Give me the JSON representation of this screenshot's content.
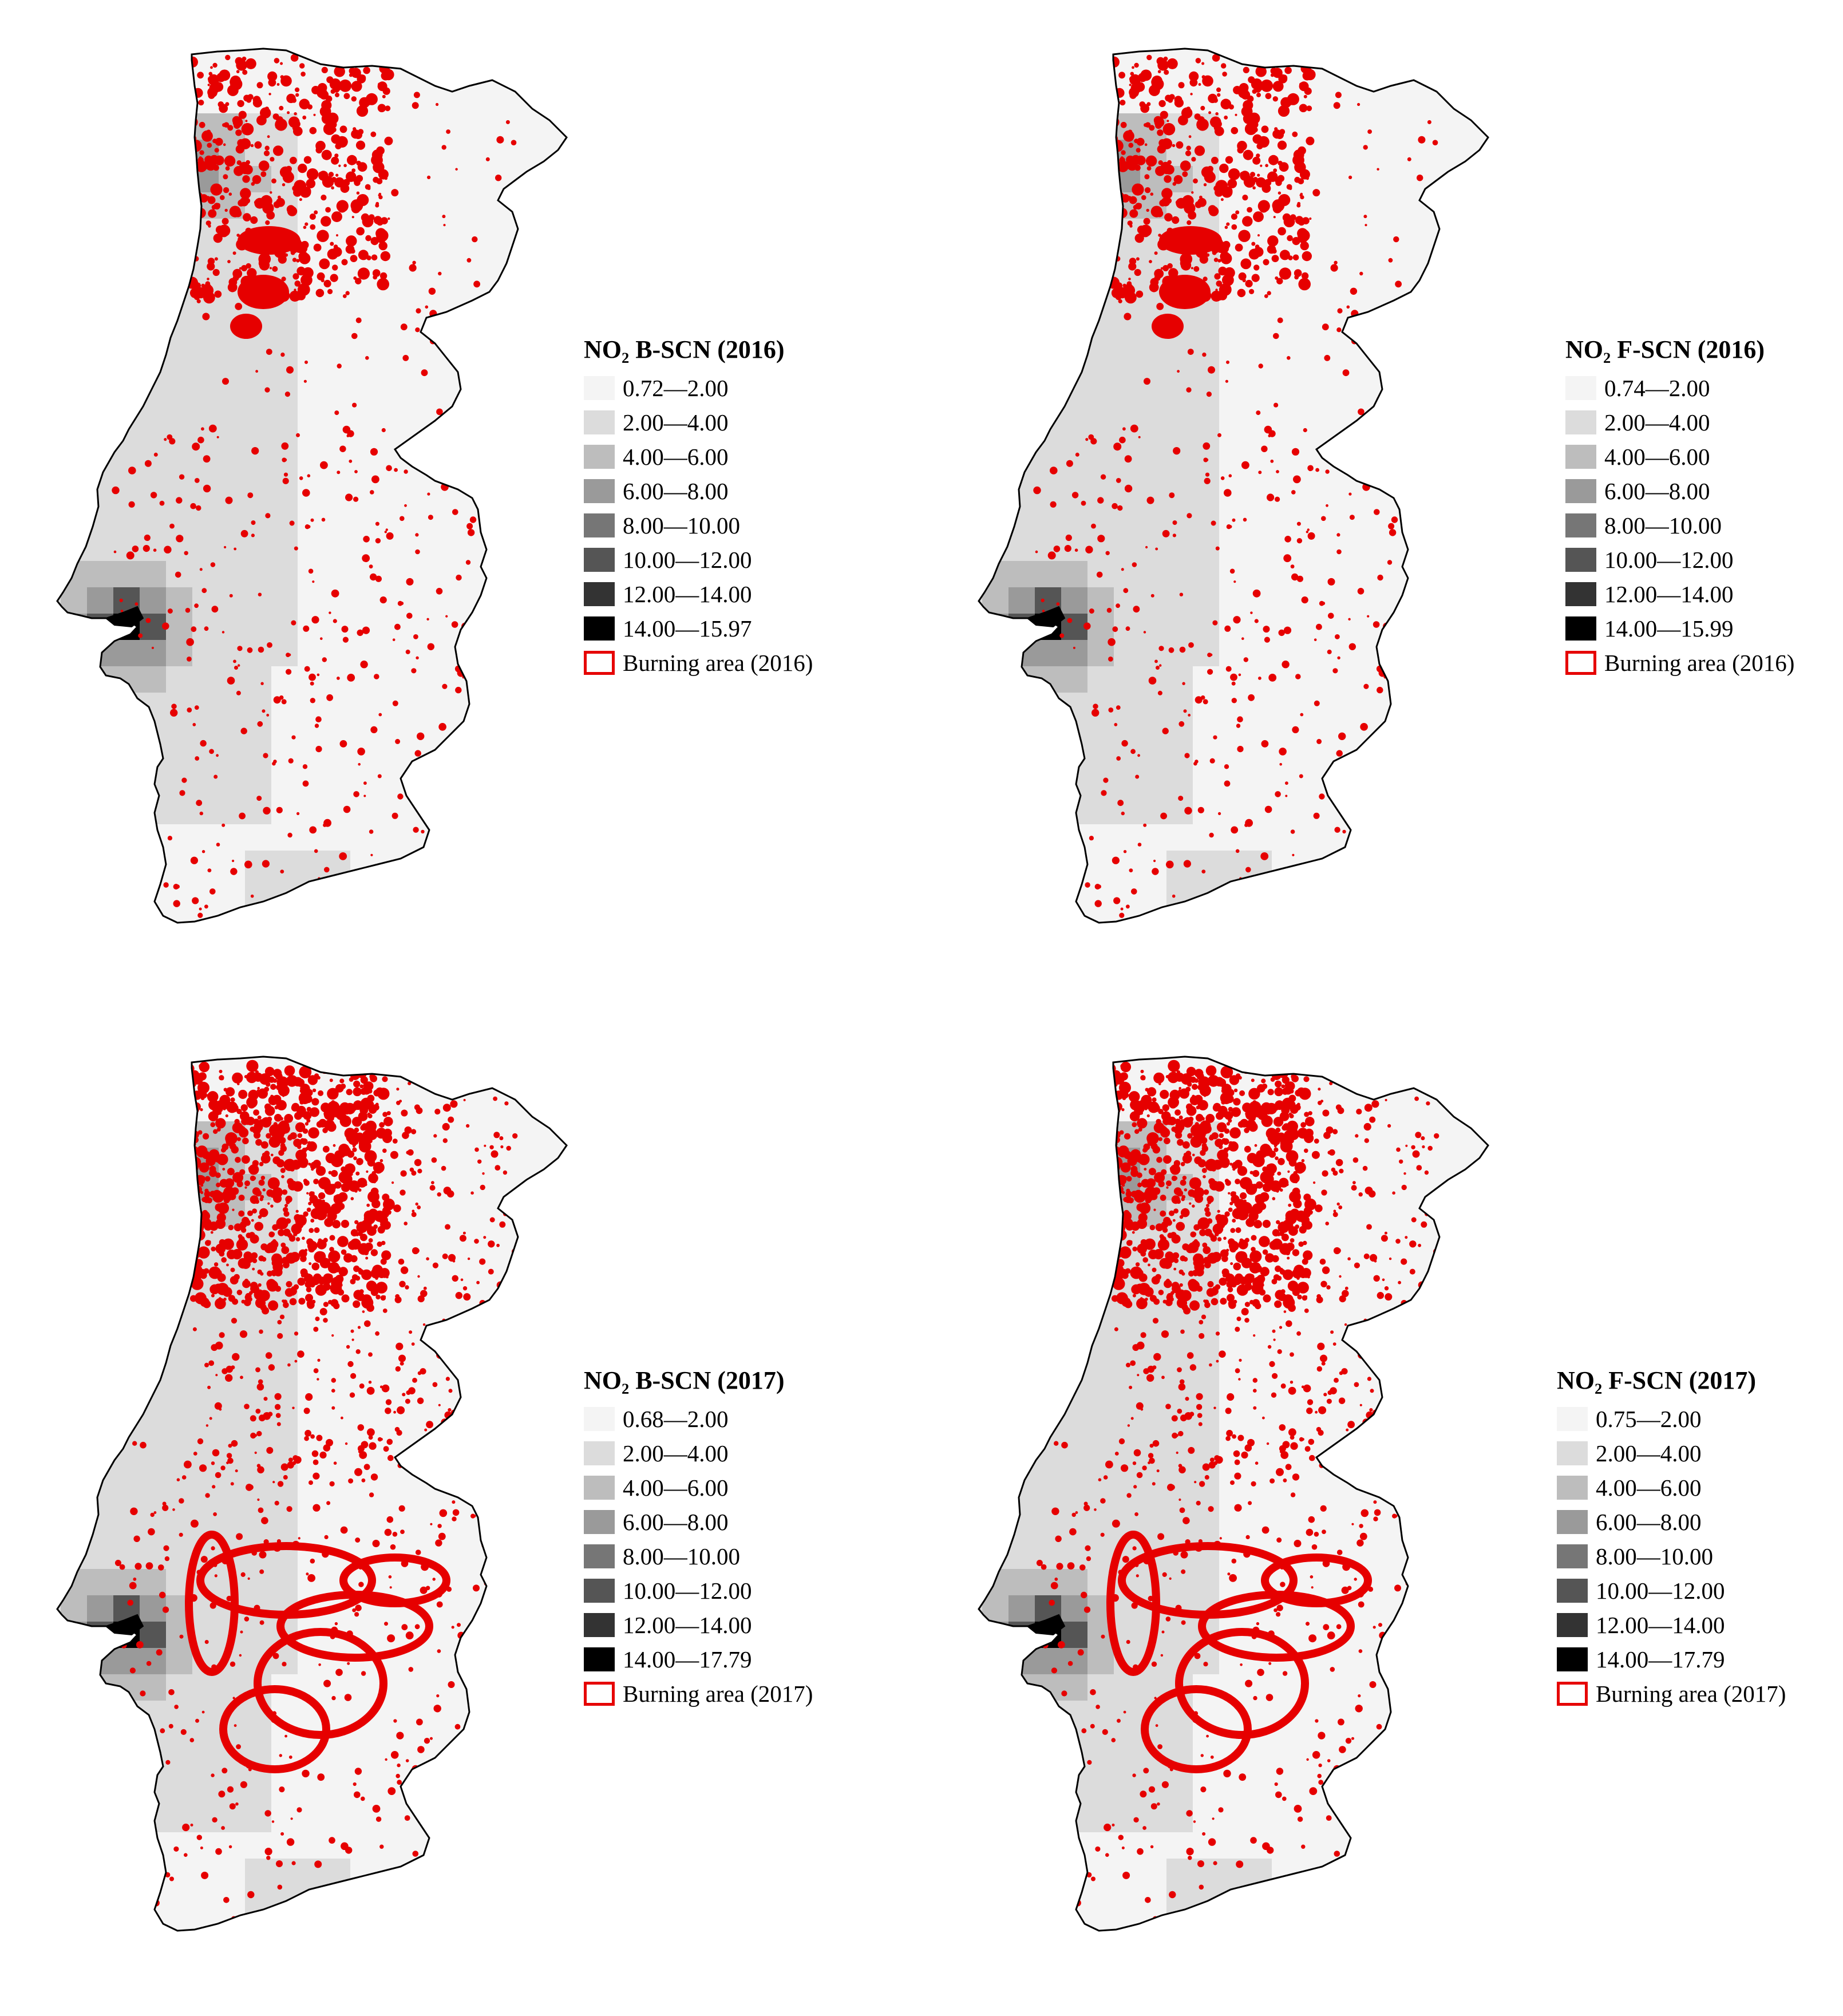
{
  "panels": [
    {
      "title": "NO₂ B-SCN (2016)",
      "classes": [
        "0.72—2.00",
        "2.00—4.00",
        "4.00—6.00",
        "6.00—8.00",
        "8.00—10.00",
        "10.00—12.00",
        "12.00—14.00",
        "14.00—15.97"
      ],
      "burning_label": "Burning area (2016)",
      "fire_level": "2016-moderate"
    },
    {
      "title": "NO₂ F-SCN (2016)",
      "classes": [
        "0.74—2.00",
        "2.00—4.00",
        "4.00—6.00",
        "6.00—8.00",
        "8.00—10.00",
        "10.00—12.00",
        "12.00—14.00",
        "14.00—15.99"
      ],
      "burning_label": "Burning area (2016)",
      "fire_level": "2016-moderate"
    },
    {
      "title": "NO₂ B-SCN (2017)",
      "classes": [
        "0.68—2.00",
        "2.00—4.00",
        "4.00—6.00",
        "6.00—8.00",
        "8.00—10.00",
        "10.00—12.00",
        "12.00—14.00",
        "14.00—17.79"
      ],
      "burning_label": "Burning area (2017)",
      "fire_level": "2017-severe"
    },
    {
      "title": "NO₂ F-SCN (2017)",
      "classes": [
        "0.75—2.00",
        "2.00—4.00",
        "4.00—6.00",
        "6.00—8.00",
        "8.00—10.00",
        "10.00—12.00",
        "12.00—14.00",
        "14.00—17.79"
      ],
      "burning_label": "Burning area (2017)",
      "fire_level": "2017-severe"
    }
  ],
  "colors": {
    "class_ramp": [
      "#f4f4f4",
      "#dcdcdc",
      "#bdbdbd",
      "#9a9a9a",
      "#767676",
      "#555555",
      "#333333",
      "#000000"
    ],
    "burning_area": "#e60000",
    "outline": "#000000"
  }
}
